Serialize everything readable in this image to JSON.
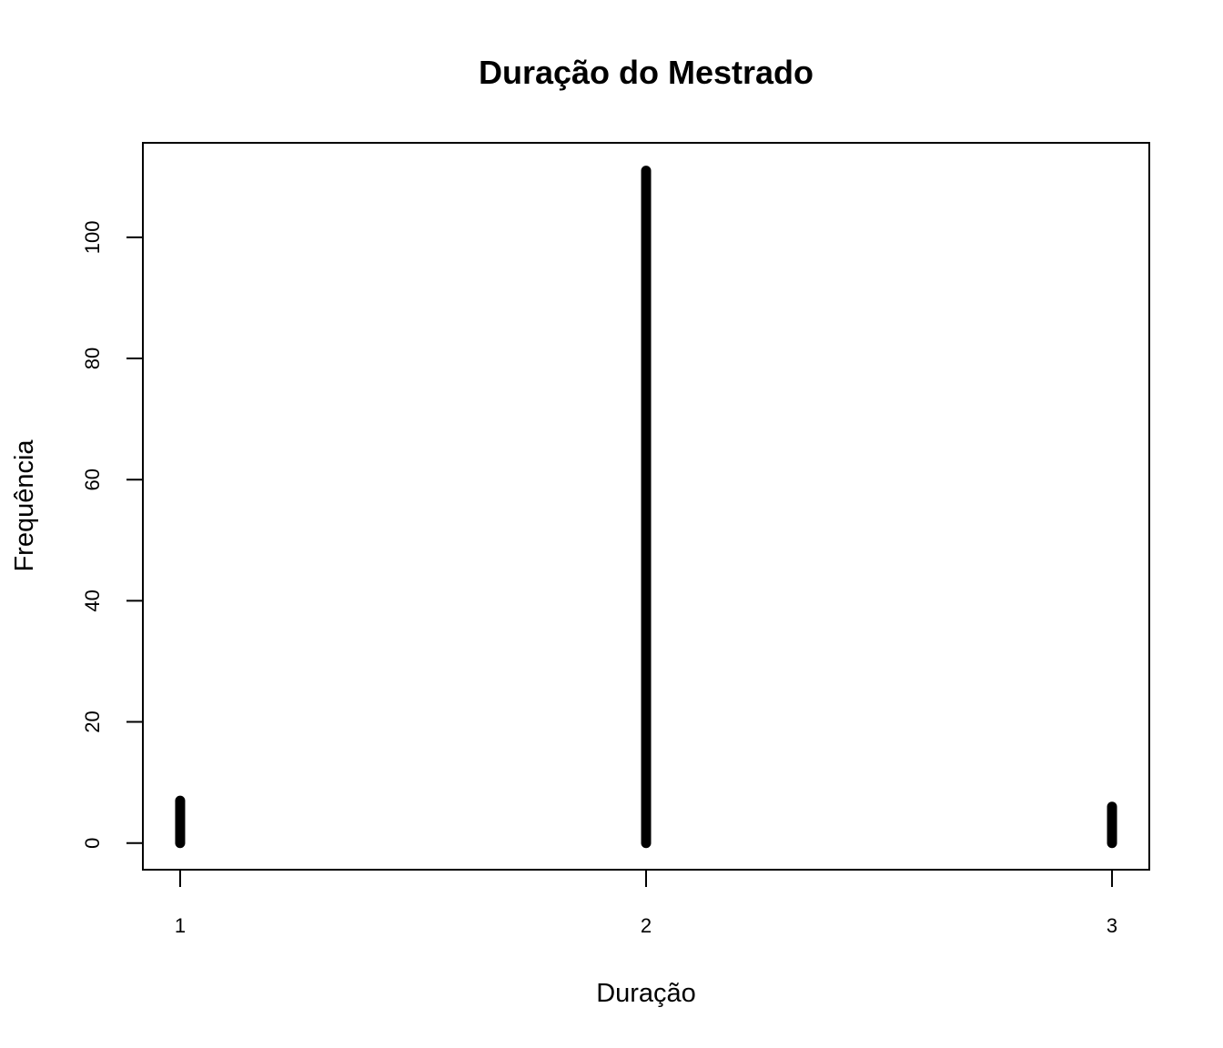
{
  "chart_data": {
    "type": "bar",
    "title": "Duração do Mestrado",
    "xlabel": "Duração",
    "ylabel": "Frequência",
    "x": [
      1,
      2,
      3
    ],
    "values": [
      7,
      111,
      6
    ],
    "xlim": [
      0.92,
      3.08
    ],
    "ylim": [
      -4.4,
      115.6
    ],
    "yticks": [
      0,
      20,
      40,
      60,
      80,
      100
    ],
    "xticks": [
      1,
      2,
      3
    ],
    "grid": false,
    "bar_color": "#000000"
  }
}
